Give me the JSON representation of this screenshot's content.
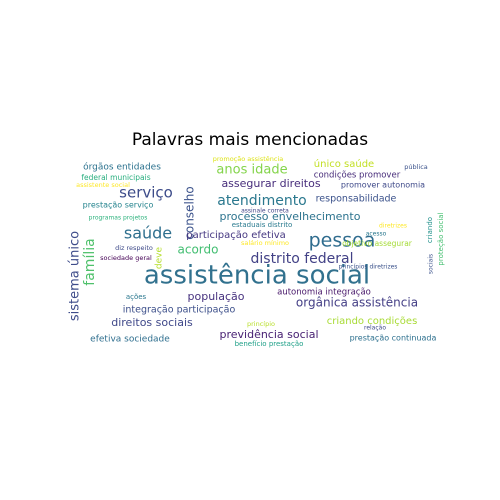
{
  "chart_data": {
    "type": "wordcloud",
    "title": "Palavras mais mencionadas",
    "words": [
      {
        "text": "assistência social",
        "weight": 1.0,
        "color": "#31718e",
        "orientation": "horizontal"
      },
      {
        "text": "pessoa",
        "weight": 0.62,
        "color": "#2f6c8e",
        "orientation": "horizontal"
      },
      {
        "text": "saúde",
        "weight": 0.5,
        "color": "#2e6f8e",
        "orientation": "horizontal"
      },
      {
        "text": "serviço",
        "weight": 0.45,
        "color": "#3d4c8a",
        "orientation": "horizontal"
      },
      {
        "text": "família",
        "weight": 0.45,
        "color": "#4fc16b",
        "orientation": "vertical"
      },
      {
        "text": "atendimento",
        "weight": 0.42,
        "color": "#2a788e",
        "orientation": "horizontal"
      },
      {
        "text": "distrito federal",
        "weight": 0.42,
        "color": "#424186",
        "orientation": "horizontal"
      },
      {
        "text": "sistema único",
        "weight": 0.4,
        "color": "#3e4c8a",
        "orientation": "vertical"
      },
      {
        "text": "anos idade",
        "weight": 0.38,
        "color": "#84d44b",
        "orientation": "horizontal"
      },
      {
        "text": "acordo",
        "weight": 0.36,
        "color": "#42be71",
        "orientation": "horizontal"
      },
      {
        "text": "conselho",
        "weight": 0.36,
        "color": "#3b528b",
        "orientation": "vertical"
      },
      {
        "text": "orgânica assistência",
        "weight": 0.36,
        "color": "#433e85",
        "orientation": "horizontal"
      },
      {
        "text": "assegurar direitos",
        "weight": 0.33,
        "color": "#472d7b",
        "orientation": "horizontal"
      },
      {
        "text": "direitos sociais",
        "weight": 0.33,
        "color": "#3f4889",
        "orientation": "horizontal"
      },
      {
        "text": "população",
        "weight": 0.32,
        "color": "#46317e",
        "orientation": "horizontal"
      },
      {
        "text": "previdência social",
        "weight": 0.3,
        "color": "#482173",
        "orientation": "horizontal"
      },
      {
        "text": "processo envelhecimento",
        "weight": 0.29,
        "color": "#2c738e",
        "orientation": "horizontal"
      },
      {
        "text": "participação efetiva",
        "weight": 0.29,
        "color": "#453781",
        "orientation": "horizontal"
      },
      {
        "text": "criando condições",
        "weight": 0.29,
        "color": "#a8db34",
        "orientation": "horizontal"
      },
      {
        "text": "único saúde",
        "weight": 0.28,
        "color": "#c2df23",
        "orientation": "horizontal"
      },
      {
        "text": "integração participação",
        "weight": 0.27,
        "color": "#3c4f8a",
        "orientation": "horizontal"
      },
      {
        "text": "responsabilidade",
        "weight": 0.27,
        "color": "#3b528b",
        "orientation": "horizontal"
      },
      {
        "text": "efetiva sociedade",
        "weight": 0.25,
        "color": "#2e6e8e",
        "orientation": "horizontal"
      },
      {
        "text": "deve",
        "weight": 0.25,
        "color": "#b5de2b",
        "orientation": "vertical"
      },
      {
        "text": "órgãos entidades",
        "weight": 0.24,
        "color": "#2c728e",
        "orientation": "horizontal"
      },
      {
        "text": "autonomia integração",
        "weight": 0.22,
        "color": "#48186a",
        "orientation": "horizontal"
      },
      {
        "text": "condições promover",
        "weight": 0.22,
        "color": "#472c7a",
        "orientation": "horizontal"
      },
      {
        "text": "promover autonomia",
        "weight": 0.21,
        "color": "#3e4989",
        "orientation": "horizontal"
      },
      {
        "text": "prestação continuada",
        "weight": 0.2,
        "color": "#2d708e",
        "orientation": "horizontal"
      },
      {
        "text": "prestação serviço",
        "weight": 0.2,
        "color": "#25848e",
        "orientation": "horizontal"
      },
      {
        "text": "objetivo assegurar",
        "weight": 0.19,
        "color": "#a5db36",
        "orientation": "horizontal"
      },
      {
        "text": "federal municipais",
        "weight": 0.18,
        "color": "#29af7f",
        "orientation": "horizontal"
      },
      {
        "text": "estaduais distrito",
        "weight": 0.17,
        "color": "#297a8e",
        "orientation": "horizontal"
      },
      {
        "text": "ações",
        "weight": 0.17,
        "color": "#2a778e",
        "orientation": "horizontal"
      },
      {
        "text": "benefício prestação",
        "weight": 0.17,
        "color": "#1fa088",
        "orientation": "horizontal"
      },
      {
        "text": "criando",
        "weight": 0.17,
        "color": "#21918c",
        "orientation": "vertical"
      },
      {
        "text": "proteção social",
        "weight": 0.17,
        "color": "#44bf70",
        "orientation": "vertical"
      },
      {
        "text": "sociedade geral",
        "weight": 0.16,
        "color": "#440154",
        "orientation": "horizontal"
      },
      {
        "text": "promoção assistência",
        "weight": 0.15,
        "color": "#dde318",
        "orientation": "horizontal"
      },
      {
        "text": "salário mínimo",
        "weight": 0.15,
        "color": "#fde725",
        "orientation": "horizontal"
      },
      {
        "text": "pública",
        "weight": 0.15,
        "color": "#3b528b",
        "orientation": "horizontal"
      },
      {
        "text": "assistente social",
        "weight": 0.15,
        "color": "#fde725",
        "orientation": "horizontal"
      },
      {
        "text": "diz respeito",
        "weight": 0.15,
        "color": "#3e4a89",
        "orientation": "horizontal"
      },
      {
        "text": "programas projetos",
        "weight": 0.14,
        "color": "#2db27d",
        "orientation": "horizontal"
      },
      {
        "text": "assinale correta",
        "weight": 0.14,
        "color": "#414487",
        "orientation": "horizontal"
      },
      {
        "text": "princípio",
        "weight": 0.15,
        "color": "#b8de29",
        "orientation": "horizontal"
      },
      {
        "text": "princípios diretrizes",
        "weight": 0.13,
        "color": "#3b528b",
        "orientation": "horizontal"
      },
      {
        "text": "relação",
        "weight": 0.14,
        "color": "#3e4a89",
        "orientation": "horizontal"
      },
      {
        "text": "acesso",
        "weight": 0.14,
        "color": "#2a788e",
        "orientation": "horizontal"
      },
      {
        "text": "diretrizes",
        "weight": 0.14,
        "color": "#fde725",
        "orientation": "horizontal"
      },
      {
        "text": "sociais",
        "weight": 0.15,
        "color": "#3b528b",
        "orientation": "vertical"
      }
    ]
  }
}
